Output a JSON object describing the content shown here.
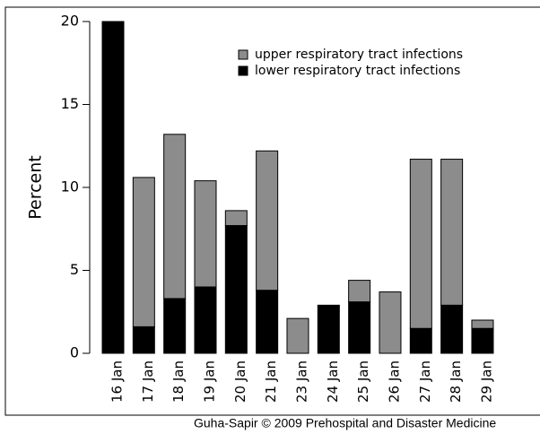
{
  "chart_data": {
    "type": "stacked_bar",
    "ylabel": "Percent",
    "categories": [
      "16 Jan",
      "17 Jan",
      "18 Jan",
      "19 Jan",
      "20 Jan",
      "21 Jan",
      "23 Jan",
      "24 Jan",
      "25 Jan",
      "26 Jan",
      "27 Jan",
      "28 Jan",
      "29 Jan"
    ],
    "series": [
      {
        "name": "lower respiratory tract infections",
        "color": "#000000",
        "values": [
          20,
          1.6,
          3.3,
          4.0,
          7.7,
          3.8,
          0,
          2.9,
          3.1,
          0,
          1.5,
          2.9,
          1.5
        ]
      },
      {
        "name": "upper respiratory tract infections",
        "color": "#8c8c8c",
        "values": [
          0,
          9.0,
          9.9,
          6.4,
          0.9,
          8.4,
          2.1,
          0,
          1.3,
          3.7,
          10.2,
          8.8,
          0.5
        ]
      }
    ],
    "ylim": [
      0,
      20
    ],
    "yticks": [
      0,
      5,
      10,
      15,
      20
    ],
    "credit": "Guha-Sapir © 2009 Prehospital and Disaster Medicine"
  }
}
